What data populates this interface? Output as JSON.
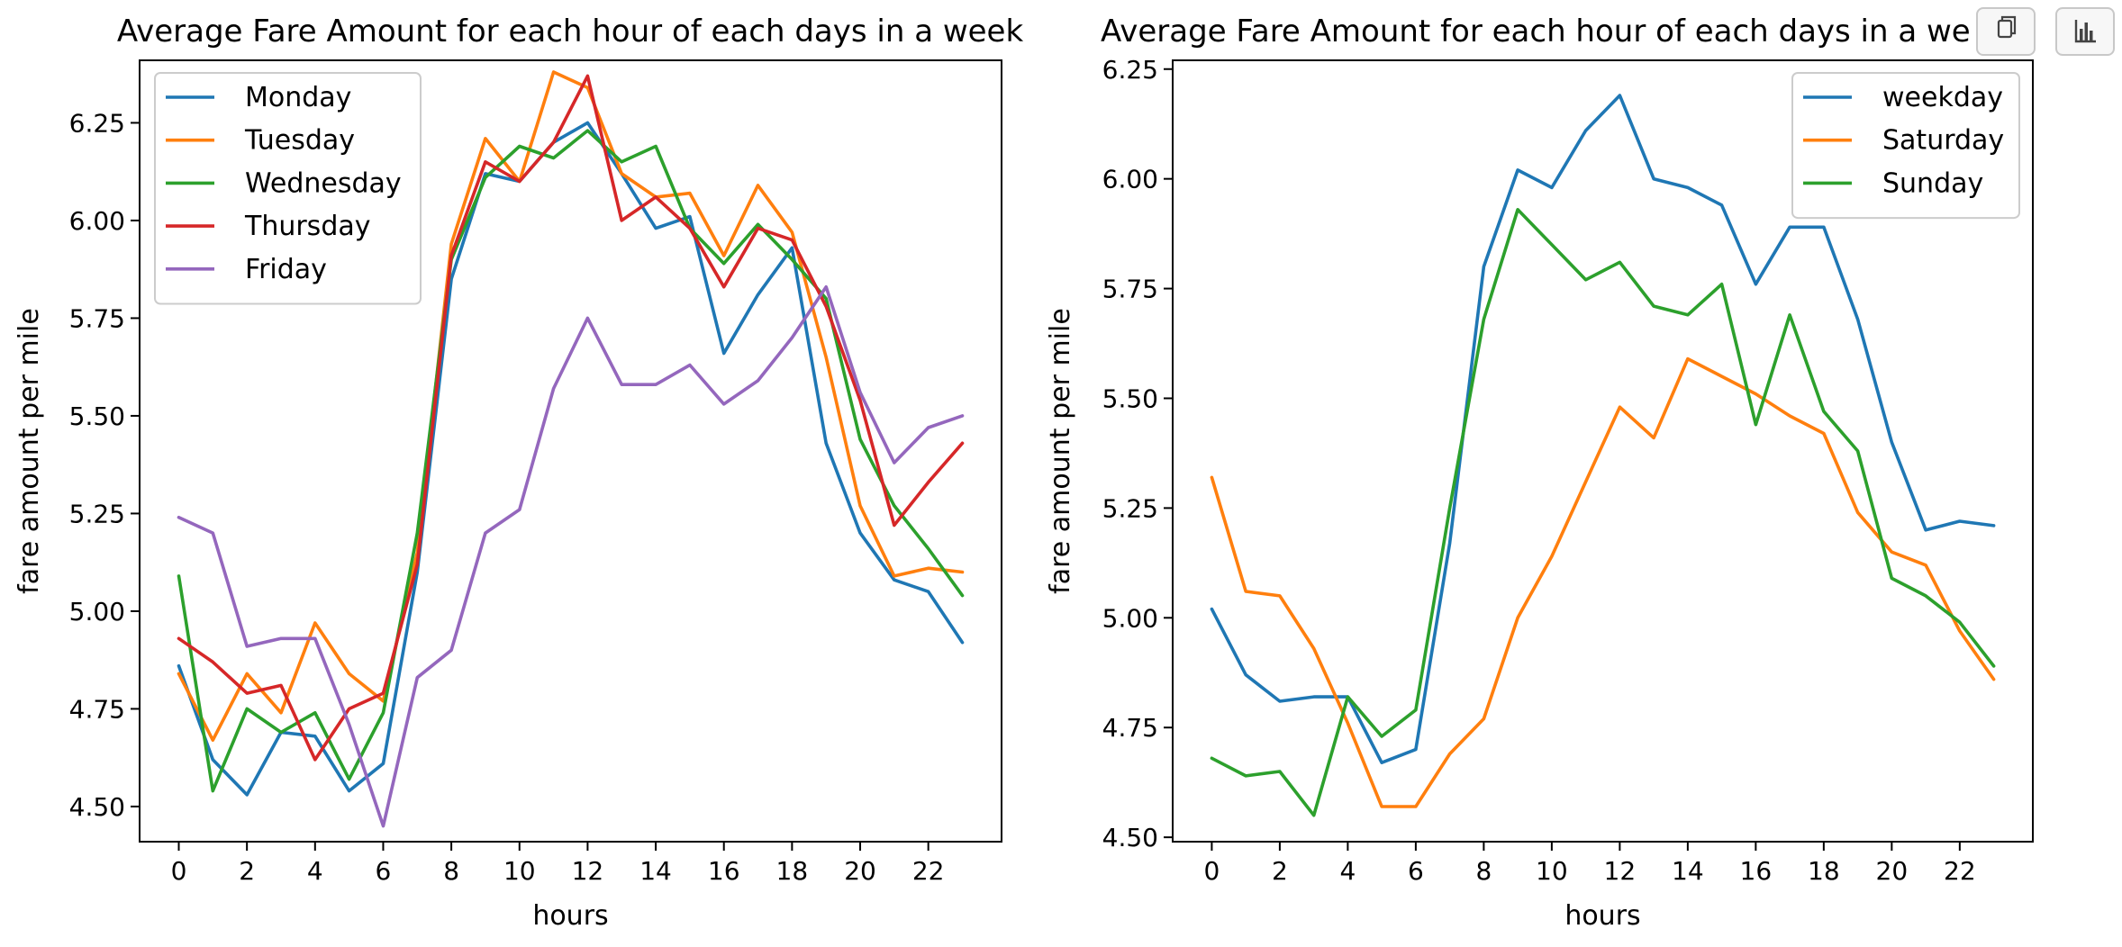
{
  "toolbar": {
    "copy_icon": "copy-icon",
    "chart_icon": "bar-chart-icon"
  },
  "chart_data": [
    {
      "type": "line",
      "title": "Average Fare Amount for each hour of each days in a week",
      "xlabel": "hours",
      "ylabel": "fare amount per mile",
      "x": [
        0,
        1,
        2,
        3,
        4,
        5,
        6,
        7,
        8,
        9,
        10,
        11,
        12,
        13,
        14,
        15,
        16,
        17,
        18,
        19,
        20,
        21,
        22,
        23
      ],
      "xticks": [
        0,
        2,
        4,
        6,
        8,
        10,
        12,
        14,
        16,
        18,
        20,
        22
      ],
      "xlim": [
        -1.15,
        24.15
      ],
      "yticks": [
        4.5,
        4.75,
        5.0,
        5.25,
        5.5,
        5.75,
        6.0,
        6.25
      ],
      "ytick_labels": [
        "4.50",
        "4.75",
        "5.00",
        "5.25",
        "5.50",
        "5.75",
        "6.00",
        "6.25"
      ],
      "ylim": [
        4.41,
        6.41
      ],
      "legend_position": "upper left",
      "grid": false,
      "series": [
        {
          "name": "Monday",
          "color": "#1f77b4",
          "values": [
            4.86,
            4.62,
            4.53,
            4.69,
            4.68,
            4.54,
            4.61,
            5.1,
            5.85,
            6.12,
            6.1,
            6.2,
            6.25,
            6.12,
            5.98,
            6.01,
            5.66,
            5.81,
            5.93,
            5.43,
            5.2,
            5.08,
            5.05,
            4.92
          ]
        },
        {
          "name": "Tuesday",
          "color": "#ff7f0e",
          "values": [
            4.84,
            4.67,
            4.84,
            4.74,
            4.97,
            4.84,
            4.77,
            5.15,
            5.94,
            6.21,
            6.1,
            6.38,
            6.34,
            6.12,
            6.06,
            6.07,
            5.91,
            6.09,
            5.97,
            5.65,
            5.27,
            5.09,
            5.11,
            5.1
          ]
        },
        {
          "name": "Wednesday",
          "color": "#2ca02c",
          "values": [
            5.09,
            4.54,
            4.75,
            4.69,
            4.74,
            4.57,
            4.74,
            5.2,
            5.9,
            6.11,
            6.19,
            6.16,
            6.23,
            6.15,
            6.19,
            5.98,
            5.89,
            5.99,
            5.9,
            5.8,
            5.44,
            5.27,
            5.16,
            5.04
          ]
        },
        {
          "name": "Thursday",
          "color": "#d62728",
          "values": [
            4.93,
            4.87,
            4.79,
            4.81,
            4.62,
            4.75,
            4.79,
            5.12,
            5.91,
            6.15,
            6.1,
            6.2,
            6.37,
            6.0,
            6.06,
            5.98,
            5.83,
            5.98,
            5.95,
            5.78,
            5.54,
            5.22,
            5.33,
            5.43
          ]
        },
        {
          "name": "Friday",
          "color": "#9467bd",
          "values": [
            5.24,
            5.2,
            4.91,
            4.93,
            4.93,
            4.71,
            4.45,
            4.83,
            4.9,
            5.2,
            5.26,
            5.57,
            5.75,
            5.58,
            5.58,
            5.63,
            5.53,
            5.59,
            5.7,
            5.83,
            5.56,
            5.38,
            5.47,
            5.5
          ]
        }
      ]
    },
    {
      "type": "line",
      "title": "Average Fare Amount for each hour of each days in a we",
      "xlabel": "hours",
      "ylabel": "fare amount per mile",
      "x": [
        0,
        1,
        2,
        3,
        4,
        5,
        6,
        7,
        8,
        9,
        10,
        11,
        12,
        13,
        14,
        15,
        16,
        17,
        18,
        19,
        20,
        21,
        22,
        23
      ],
      "xticks": [
        0,
        2,
        4,
        6,
        8,
        10,
        12,
        14,
        16,
        18,
        20,
        22
      ],
      "xlim": [
        -1.15,
        24.15
      ],
      "yticks": [
        4.5,
        4.75,
        5.0,
        5.25,
        5.5,
        5.75,
        6.0,
        6.25
      ],
      "ytick_labels": [
        "4.50",
        "4.75",
        "5.00",
        "5.25",
        "5.50",
        "5.75",
        "6.00",
        "6.25"
      ],
      "ylim": [
        4.49,
        6.27
      ],
      "legend_position": "upper right",
      "grid": false,
      "series": [
        {
          "name": "weekday",
          "color": "#1f77b4",
          "values": [
            5.02,
            4.87,
            4.81,
            4.82,
            4.82,
            4.67,
            4.7,
            5.17,
            5.8,
            6.02,
            5.98,
            6.11,
            6.19,
            6.0,
            5.98,
            5.94,
            5.76,
            5.89,
            5.89,
            5.68,
            5.4,
            5.2,
            5.22,
            5.21
          ]
        },
        {
          "name": "Saturday",
          "color": "#ff7f0e",
          "values": [
            5.32,
            5.06,
            5.05,
            4.93,
            4.76,
            4.57,
            4.57,
            4.69,
            4.77,
            5.0,
            5.14,
            5.31,
            5.48,
            5.41,
            5.59,
            5.55,
            5.51,
            5.46,
            5.42,
            5.24,
            5.15,
            5.12,
            4.97,
            4.86
          ]
        },
        {
          "name": "Sunday",
          "color": "#2ca02c",
          "values": [
            4.68,
            4.64,
            4.65,
            4.55,
            4.82,
            4.73,
            4.79,
            5.25,
            5.68,
            5.93,
            5.85,
            5.77,
            5.81,
            5.71,
            5.69,
            5.76,
            5.44,
            5.69,
            5.47,
            5.38,
            5.09,
            5.05,
            4.99,
            4.89
          ]
        }
      ]
    }
  ]
}
